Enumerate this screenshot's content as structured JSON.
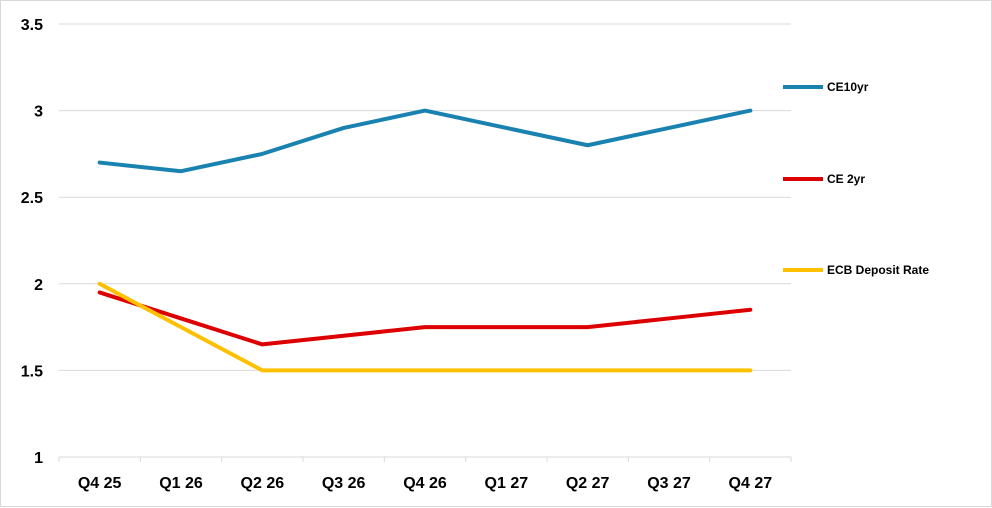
{
  "chart_data": {
    "type": "line",
    "title": "",
    "xlabel": "",
    "ylabel": "",
    "categories": [
      "Q4 25",
      "Q1 26",
      "Q2 26",
      "Q3 26",
      "Q4 26",
      "Q1 27",
      "Q2 27",
      "Q3 27",
      "Q4 27"
    ],
    "ylim": [
      1,
      3.5
    ],
    "yticks": [
      "1",
      "1.5",
      "2",
      "2.5",
      "3",
      "3.5"
    ],
    "grid": "horizontal",
    "legend_position": "right",
    "series": [
      {
        "name": "CE10yr",
        "color": "#1a82b1",
        "values": [
          2.7,
          2.65,
          2.75,
          2.9,
          3.0,
          2.9,
          2.8,
          2.9,
          3.0
        ]
      },
      {
        "name": "CE 2yr",
        "color": "#dd0000",
        "values": [
          1.95,
          1.8,
          1.65,
          1.7,
          1.75,
          1.75,
          1.75,
          1.8,
          1.85
        ]
      },
      {
        "name": "ECB Deposit Rate",
        "color": "#ffc000",
        "values": [
          2.0,
          1.75,
          1.5,
          1.5,
          1.5,
          1.5,
          1.5,
          1.5,
          1.5
        ]
      }
    ]
  }
}
